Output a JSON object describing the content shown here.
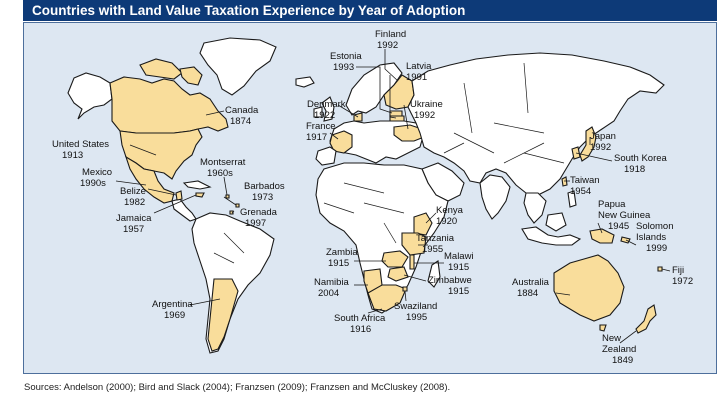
{
  "title": "Countries with Land Value Taxation Experience by Year of Adoption",
  "sources": "Sources: Andelson (2000); Bird and Slack (2004); Franzsen (2009); Franzsen and McCluskey (2008).",
  "colors": {
    "title_bar": "#0d3a78",
    "ocean": "#dde7f2",
    "land": "#ffffff",
    "highlight": "#f9dd9b"
  },
  "countries": [
    {
      "id": "canada",
      "name": "Canada",
      "year": "1874"
    },
    {
      "id": "united-states",
      "name": "United States",
      "year": "1913"
    },
    {
      "id": "mexico",
      "name": "Mexico",
      "year": "1990s"
    },
    {
      "id": "belize",
      "name": "Belize",
      "year": "1982"
    },
    {
      "id": "jamaica",
      "name": "Jamaica",
      "year": "1957"
    },
    {
      "id": "montserrat",
      "name": "Montserrat",
      "year": "1960s"
    },
    {
      "id": "barbados",
      "name": "Barbados",
      "year": "1973"
    },
    {
      "id": "grenada",
      "name": "Grenada",
      "year": "1997"
    },
    {
      "id": "argentina",
      "name": "Argentina",
      "year": "1969"
    },
    {
      "id": "finland",
      "name": "Finland",
      "year": "1992"
    },
    {
      "id": "estonia",
      "name": "Estonia",
      "year": "1993"
    },
    {
      "id": "latvia",
      "name": "Latvia",
      "year": "1991"
    },
    {
      "id": "denmark",
      "name": "Denmark",
      "year": "1922"
    },
    {
      "id": "ukraine",
      "name": "Ukraine",
      "year": "1992"
    },
    {
      "id": "france",
      "name": "France",
      "year": "1917"
    },
    {
      "id": "japan",
      "name": "Japan",
      "year": "1992"
    },
    {
      "id": "south-korea",
      "name": "South Korea",
      "year": "1918"
    },
    {
      "id": "taiwan",
      "name": "Taiwan",
      "year": "1954"
    },
    {
      "id": "papua-new-guinea",
      "name": "Papua\nNew Guinea",
      "year": "1945"
    },
    {
      "id": "solomon-islands",
      "name": "Solomon\nIslands",
      "year": "1999"
    },
    {
      "id": "fiji",
      "name": "Fiji",
      "year": "1972"
    },
    {
      "id": "australia",
      "name": "Australia",
      "year": "1884"
    },
    {
      "id": "new-zealand",
      "name": "New\nZealand",
      "year": "1849"
    },
    {
      "id": "kenya",
      "name": "Kenya",
      "year": "1920"
    },
    {
      "id": "tanzania",
      "name": "Tanzania",
      "year": "1955"
    },
    {
      "id": "zambia",
      "name": "Zambia",
      "year": "1915"
    },
    {
      "id": "malawi",
      "name": "Malawi",
      "year": "1915"
    },
    {
      "id": "namibia",
      "name": "Namibia",
      "year": "2004"
    },
    {
      "id": "zimbabwe",
      "name": "Zimbabwe",
      "year": "1915"
    },
    {
      "id": "south-africa",
      "name": "South Africa",
      "year": "1916"
    },
    {
      "id": "swaziland",
      "name": "Swaziland",
      "year": "1995"
    }
  ]
}
